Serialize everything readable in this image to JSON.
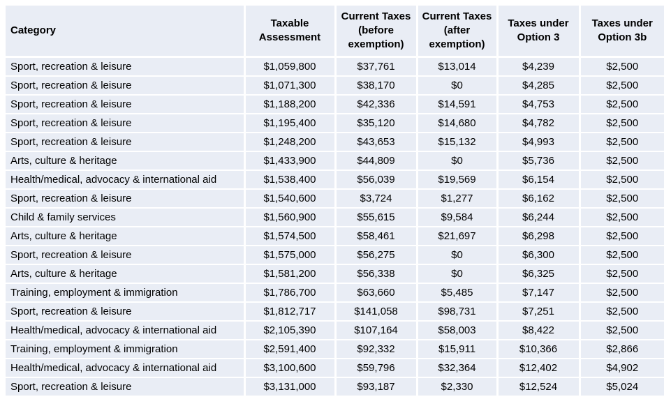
{
  "table": {
    "columns": [
      "Category",
      "Taxable Assessment",
      "Current Taxes (before exemption)",
      "Current Taxes (after exemption)",
      "Taxes under Option 3",
      "Taxes under Option 3b"
    ],
    "rows": [
      [
        "Sport, recreation & leisure",
        "$1,059,800",
        "$37,761",
        "$13,014",
        "$4,239",
        "$2,500"
      ],
      [
        "Sport, recreation & leisure",
        "$1,071,300",
        "$38,170",
        "$0",
        "$4,285",
        "$2,500"
      ],
      [
        "Sport, recreation & leisure",
        "$1,188,200",
        "$42,336",
        "$14,591",
        "$4,753",
        "$2,500"
      ],
      [
        "Sport, recreation & leisure",
        "$1,195,400",
        "$35,120",
        "$14,680",
        "$4,782",
        "$2,500"
      ],
      [
        "Sport, recreation & leisure",
        "$1,248,200",
        "$43,653",
        "$15,132",
        "$4,993",
        "$2,500"
      ],
      [
        "Arts, culture & heritage",
        "$1,433,900",
        "$44,809",
        "$0",
        "$5,736",
        "$2,500"
      ],
      [
        "Health/medical, advocacy & international aid",
        "$1,538,400",
        "$56,039",
        "$19,569",
        "$6,154",
        "$2,500"
      ],
      [
        "Sport, recreation & leisure",
        "$1,540,600",
        "$3,724",
        "$1,277",
        "$6,162",
        "$2,500"
      ],
      [
        "Child & family services",
        "$1,560,900",
        "$55,615",
        "$9,584",
        "$6,244",
        "$2,500"
      ],
      [
        "Arts, culture & heritage",
        "$1,574,500",
        "$58,461",
        "$21,697",
        "$6,298",
        "$2,500"
      ],
      [
        "Sport, recreation & leisure",
        "$1,575,000",
        "$56,275",
        "$0",
        "$6,300",
        "$2,500"
      ],
      [
        "Arts, culture & heritage",
        "$1,581,200",
        "$56,338",
        "$0",
        "$6,325",
        "$2,500"
      ],
      [
        "Training, employment & immigration",
        "$1,786,700",
        "$63,660",
        "$5,485",
        "$7,147",
        "$2,500"
      ],
      [
        "Sport, recreation & leisure",
        "$1,812,717",
        "$141,058",
        "$98,731",
        "$7,251",
        "$2,500"
      ],
      [
        "Health/medical, advocacy & international aid",
        "$2,105,390",
        "$107,164",
        "$58,003",
        "$8,422",
        "$2,500"
      ],
      [
        "Training, employment & immigration",
        "$2,591,400",
        "$92,332",
        "$15,911",
        "$10,366",
        "$2,866"
      ],
      [
        "Health/medical, advocacy & international aid",
        "$3,100,600",
        "$59,796",
        "$32,364",
        "$12,402",
        "$4,902"
      ],
      [
        "Sport, recreation & leisure",
        "$3,131,000",
        "$93,187",
        "$2,330",
        "$12,524",
        "$5,024"
      ]
    ],
    "colors": {
      "cell_fill": "#e9edf5",
      "gridline": "#ffffff",
      "text": "#000000"
    }
  }
}
